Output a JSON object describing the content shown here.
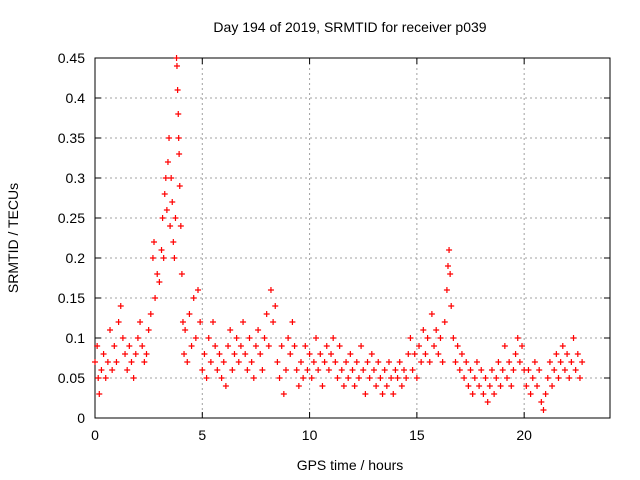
{
  "chart_data": {
    "type": "scatter",
    "title": "Day 194 of 2019, SRMTID for receiver p039",
    "xlabel": "GPS time / hours",
    "ylabel": "SRMTID / TECUs",
    "xlim": [
      0,
      24
    ],
    "ylim": [
      0,
      0.45
    ],
    "xticks": [
      0,
      5,
      10,
      15,
      20
    ],
    "xtick_labels": [
      "0",
      "5",
      "10",
      "15",
      "20"
    ],
    "yticks": [
      0,
      0.05,
      0.1,
      0.15,
      0.2,
      0.25,
      0.3,
      0.35,
      0.4,
      0.45
    ],
    "ytick_labels": [
      "0",
      "0.05",
      "0.1",
      "0.15",
      "0.2",
      "0.25",
      "0.3",
      "0.35",
      "0.4",
      "0.45"
    ],
    "grid": true,
    "marker": "+",
    "marker_color": "#ff0000",
    "series": [
      {
        "name": "SRMTID",
        "points": [
          [
            0.0,
            0.07
          ],
          [
            0.1,
            0.09
          ],
          [
            0.15,
            0.05
          ],
          [
            0.2,
            0.03
          ],
          [
            0.3,
            0.06
          ],
          [
            0.4,
            0.08
          ],
          [
            0.5,
            0.05
          ],
          [
            0.6,
            0.07
          ],
          [
            0.7,
            0.11
          ],
          [
            0.8,
            0.06
          ],
          [
            0.9,
            0.09
          ],
          [
            1.0,
            0.07
          ],
          [
            1.1,
            0.12
          ],
          [
            1.2,
            0.14
          ],
          [
            1.3,
            0.1
          ],
          [
            1.4,
            0.08
          ],
          [
            1.5,
            0.06
          ],
          [
            1.6,
            0.09
          ],
          [
            1.7,
            0.07
          ],
          [
            1.8,
            0.05
          ],
          [
            1.9,
            0.08
          ],
          [
            2.0,
            0.1
          ],
          [
            2.1,
            0.12
          ],
          [
            2.2,
            0.09
          ],
          [
            2.3,
            0.07
          ],
          [
            2.4,
            0.08
          ],
          [
            2.5,
            0.11
          ],
          [
            2.6,
            0.13
          ],
          [
            2.7,
            0.2
          ],
          [
            2.75,
            0.22
          ],
          [
            2.8,
            0.15
          ],
          [
            2.9,
            0.18
          ],
          [
            3.0,
            0.17
          ],
          [
            3.1,
            0.21
          ],
          [
            3.15,
            0.25
          ],
          [
            3.2,
            0.2
          ],
          [
            3.25,
            0.28
          ],
          [
            3.3,
            0.3
          ],
          [
            3.35,
            0.26
          ],
          [
            3.4,
            0.32
          ],
          [
            3.45,
            0.35
          ],
          [
            3.5,
            0.24
          ],
          [
            3.55,
            0.3
          ],
          [
            3.6,
            0.27
          ],
          [
            3.65,
            0.22
          ],
          [
            3.7,
            0.2
          ],
          [
            3.75,
            0.25
          ],
          [
            3.8,
            0.45
          ],
          [
            3.82,
            0.44
          ],
          [
            3.85,
            0.41
          ],
          [
            3.88,
            0.38
          ],
          [
            3.9,
            0.35
          ],
          [
            3.92,
            0.33
          ],
          [
            3.95,
            0.29
          ],
          [
            4.0,
            0.24
          ],
          [
            4.05,
            0.18
          ],
          [
            4.1,
            0.12
          ],
          [
            4.15,
            0.08
          ],
          [
            4.2,
            0.11
          ],
          [
            4.3,
            0.07
          ],
          [
            4.4,
            0.13
          ],
          [
            4.5,
            0.09
          ],
          [
            4.6,
            0.15
          ],
          [
            4.7,
            0.1
          ],
          [
            4.8,
            0.16
          ],
          [
            4.9,
            0.12
          ],
          [
            5.0,
            0.06
          ],
          [
            5.1,
            0.08
          ],
          [
            5.2,
            0.05
          ],
          [
            5.3,
            0.1
          ],
          [
            5.4,
            0.07
          ],
          [
            5.5,
            0.12
          ],
          [
            5.6,
            0.09
          ],
          [
            5.7,
            0.06
          ],
          [
            5.8,
            0.08
          ],
          [
            5.9,
            0.05
          ],
          [
            6.0,
            0.07
          ],
          [
            6.1,
            0.04
          ],
          [
            6.2,
            0.09
          ],
          [
            6.3,
            0.11
          ],
          [
            6.4,
            0.06
          ],
          [
            6.5,
            0.08
          ],
          [
            6.6,
            0.1
          ],
          [
            6.7,
            0.07
          ],
          [
            6.8,
            0.09
          ],
          [
            6.9,
            0.12
          ],
          [
            7.0,
            0.08
          ],
          [
            7.1,
            0.06
          ],
          [
            7.2,
            0.1
          ],
          [
            7.3,
            0.07
          ],
          [
            7.4,
            0.05
          ],
          [
            7.5,
            0.09
          ],
          [
            7.6,
            0.11
          ],
          [
            7.7,
            0.08
          ],
          [
            7.8,
            0.06
          ],
          [
            7.9,
            0.1
          ],
          [
            8.0,
            0.13
          ],
          [
            8.1,
            0.09
          ],
          [
            8.2,
            0.16
          ],
          [
            8.3,
            0.12
          ],
          [
            8.4,
            0.14
          ],
          [
            8.5,
            0.07
          ],
          [
            8.6,
            0.05
          ],
          [
            8.7,
            0.09
          ],
          [
            8.8,
            0.03
          ],
          [
            8.9,
            0.06
          ],
          [
            9.0,
            0.1
          ],
          [
            9.1,
            0.08
          ],
          [
            9.2,
            0.12
          ],
          [
            9.3,
            0.09
          ],
          [
            9.4,
            0.06
          ],
          [
            9.5,
            0.04
          ],
          [
            9.6,
            0.07
          ],
          [
            9.7,
            0.05
          ],
          [
            9.8,
            0.09
          ],
          [
            9.9,
            0.06
          ],
          [
            10.0,
            0.08
          ],
          [
            10.1,
            0.05
          ],
          [
            10.2,
            0.07
          ],
          [
            10.3,
            0.1
          ],
          [
            10.4,
            0.06
          ],
          [
            10.5,
            0.08
          ],
          [
            10.6,
            0.04
          ],
          [
            10.7,
            0.07
          ],
          [
            10.8,
            0.09
          ],
          [
            10.9,
            0.06
          ],
          [
            11.0,
            0.08
          ],
          [
            11.1,
            0.1
          ],
          [
            11.2,
            0.07
          ],
          [
            11.3,
            0.05
          ],
          [
            11.4,
            0.09
          ],
          [
            11.5,
            0.06
          ],
          [
            11.6,
            0.04
          ],
          [
            11.7,
            0.07
          ],
          [
            11.8,
            0.05
          ],
          [
            11.9,
            0.08
          ],
          [
            12.0,
            0.06
          ],
          [
            12.1,
            0.04
          ],
          [
            12.2,
            0.07
          ],
          [
            12.3,
            0.05
          ],
          [
            12.4,
            0.09
          ],
          [
            12.5,
            0.06
          ],
          [
            12.6,
            0.03
          ],
          [
            12.7,
            0.07
          ],
          [
            12.8,
            0.05
          ],
          [
            12.9,
            0.08
          ],
          [
            13.0,
            0.06
          ],
          [
            13.1,
            0.04
          ],
          [
            13.2,
            0.07
          ],
          [
            13.3,
            0.05
          ],
          [
            13.4,
            0.03
          ],
          [
            13.5,
            0.06
          ],
          [
            13.6,
            0.04
          ],
          [
            13.7,
            0.07
          ],
          [
            13.8,
            0.05
          ],
          [
            13.9,
            0.03
          ],
          [
            14.0,
            0.06
          ],
          [
            14.1,
            0.05
          ],
          [
            14.2,
            0.07
          ],
          [
            14.3,
            0.04
          ],
          [
            14.4,
            0.06
          ],
          [
            14.5,
            0.05
          ],
          [
            14.6,
            0.08
          ],
          [
            14.7,
            0.1
          ],
          [
            14.8,
            0.06
          ],
          [
            14.9,
            0.08
          ],
          [
            15.0,
            0.05
          ],
          [
            15.1,
            0.09
          ],
          [
            15.2,
            0.07
          ],
          [
            15.3,
            0.11
          ],
          [
            15.4,
            0.08
          ],
          [
            15.5,
            0.1
          ],
          [
            15.6,
            0.07
          ],
          [
            15.7,
            0.13
          ],
          [
            15.8,
            0.09
          ],
          [
            15.9,
            0.11
          ],
          [
            16.0,
            0.08
          ],
          [
            16.1,
            0.1
          ],
          [
            16.2,
            0.07
          ],
          [
            16.3,
            0.12
          ],
          [
            16.4,
            0.16
          ],
          [
            16.45,
            0.19
          ],
          [
            16.5,
            0.21
          ],
          [
            16.55,
            0.18
          ],
          [
            16.6,
            0.14
          ],
          [
            16.7,
            0.1
          ],
          [
            16.8,
            0.07
          ],
          [
            16.9,
            0.09
          ],
          [
            17.0,
            0.06
          ],
          [
            17.1,
            0.08
          ],
          [
            17.2,
            0.05
          ],
          [
            17.3,
            0.07
          ],
          [
            17.4,
            0.04
          ],
          [
            17.5,
            0.06
          ],
          [
            17.6,
            0.03
          ],
          [
            17.7,
            0.05
          ],
          [
            17.8,
            0.07
          ],
          [
            17.9,
            0.04
          ],
          [
            18.0,
            0.06
          ],
          [
            18.1,
            0.03
          ],
          [
            18.2,
            0.05
          ],
          [
            18.3,
            0.02
          ],
          [
            18.4,
            0.04
          ],
          [
            18.5,
            0.06
          ],
          [
            18.6,
            0.03
          ],
          [
            18.7,
            0.05
          ],
          [
            18.8,
            0.07
          ],
          [
            18.9,
            0.04
          ],
          [
            19.0,
            0.06
          ],
          [
            19.1,
            0.09
          ],
          [
            19.2,
            0.05
          ],
          [
            19.3,
            0.07
          ],
          [
            19.4,
            0.04
          ],
          [
            19.5,
            0.06
          ],
          [
            19.6,
            0.08
          ],
          [
            19.7,
            0.1
          ],
          [
            19.8,
            0.07
          ],
          [
            19.9,
            0.09
          ],
          [
            20.0,
            0.06
          ],
          [
            20.1,
            0.04
          ],
          [
            20.2,
            0.06
          ],
          [
            20.3,
            0.03
          ],
          [
            20.4,
            0.05
          ],
          [
            20.5,
            0.07
          ],
          [
            20.6,
            0.04
          ],
          [
            20.7,
            0.06
          ],
          [
            20.8,
            0.02
          ],
          [
            20.9,
            0.01
          ],
          [
            21.0,
            0.03
          ],
          [
            21.1,
            0.05
          ],
          [
            21.2,
            0.07
          ],
          [
            21.3,
            0.04
          ],
          [
            21.4,
            0.06
          ],
          [
            21.5,
            0.08
          ],
          [
            21.6,
            0.05
          ],
          [
            21.7,
            0.07
          ],
          [
            21.8,
            0.09
          ],
          [
            21.9,
            0.06
          ],
          [
            22.0,
            0.08
          ],
          [
            22.1,
            0.05
          ],
          [
            22.2,
            0.07
          ],
          [
            22.3,
            0.1
          ],
          [
            22.4,
            0.06
          ],
          [
            22.5,
            0.08
          ],
          [
            22.6,
            0.05
          ],
          [
            22.7,
            0.07
          ]
        ]
      }
    ]
  }
}
